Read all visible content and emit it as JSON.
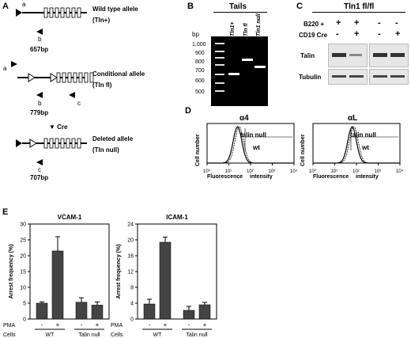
{
  "panels": {
    "A": "A",
    "B": "B",
    "C": "C",
    "D": "D",
    "E": "E"
  },
  "panel_a": {
    "wt_label": "Wild type allele",
    "wt_sub": "(Tln+)",
    "cond_label": "Conditional allele",
    "cond_sub": "(Tln fl)",
    "del_label": "Deleted allele",
    "del_sub": "(Tln null)",
    "cre": "▼ Cre",
    "size_wt": "657bp",
    "size_cond": "779bp",
    "size_del": "707bp",
    "primer_a": "a",
    "primer_b": "b",
    "primer_c": "c"
  },
  "panel_b": {
    "title": "Tails",
    "bp": "bp",
    "lanes": [
      "Tln1+",
      "Tln fl",
      "Tln1 null"
    ],
    "ladder": [
      "1,000",
      "900",
      "800",
      "700",
      "600",
      "500"
    ]
  },
  "panel_c": {
    "title": "Tln1 fl/fl",
    "row1_label": "B220 +",
    "row2_label": "CD19 Cre",
    "row1_vals": [
      "+",
      "+",
      "-",
      "-"
    ],
    "row2_vals": [
      "-",
      "+",
      "-",
      "+"
    ],
    "blot1": "Talin",
    "blot2": "Tubulin"
  },
  "panel_d": {
    "plots": [
      {
        "title": "α4",
        "ylabel": "Cell number",
        "xlabel_left": "Fluorescence",
        "xlabel_right": "intensity",
        "legend_null": "talin null",
        "legend_wt": "wt"
      },
      {
        "title": "αL",
        "ylabel": "Cell number",
        "xlabel_left": "Fluorescence",
        "xlabel_right": "intensity",
        "legend_null": "talin null",
        "legend_wt": "wt"
      }
    ],
    "xticks": [
      "10⁰",
      "10¹",
      "10²",
      "10³",
      "10⁴"
    ]
  },
  "chart_data": [
    {
      "type": "bar",
      "title": "VCAM-1",
      "ylabel": "Arrest frequency (%)",
      "ylim": [
        0,
        30
      ],
      "yticks": [
        0,
        5,
        10,
        15,
        20,
        25,
        30
      ],
      "categories": [
        "WT -",
        "WT +",
        "Talin null -",
        "Talin null +"
      ],
      "values": [
        5,
        21.5,
        5.3,
        4.4
      ],
      "errors": [
        0.4,
        4.5,
        1.4,
        1.0
      ],
      "pma": [
        "-",
        "+",
        "-",
        "+"
      ],
      "cells": [
        "WT",
        "Talin null"
      ],
      "row_labels": [
        "PMA",
        "Cells"
      ]
    },
    {
      "type": "bar",
      "title": "ICAM-1",
      "ylabel": "Arrest frequency (%)",
      "ylim": [
        0,
        24
      ],
      "yticks": [
        0,
        4,
        8,
        12,
        16,
        20,
        24
      ],
      "categories": [
        "WT -",
        "WT +",
        "Talin null -",
        "Talin null +"
      ],
      "values": [
        3.8,
        19.4,
        2.2,
        3.6
      ],
      "errors": [
        1.2,
        1.3,
        1.0,
        0.6
      ],
      "pma": [
        "-",
        "+",
        "-",
        "+"
      ],
      "cells": [
        "WT",
        "Talin null"
      ],
      "row_labels": [
        "PMA",
        "Cells"
      ]
    }
  ]
}
